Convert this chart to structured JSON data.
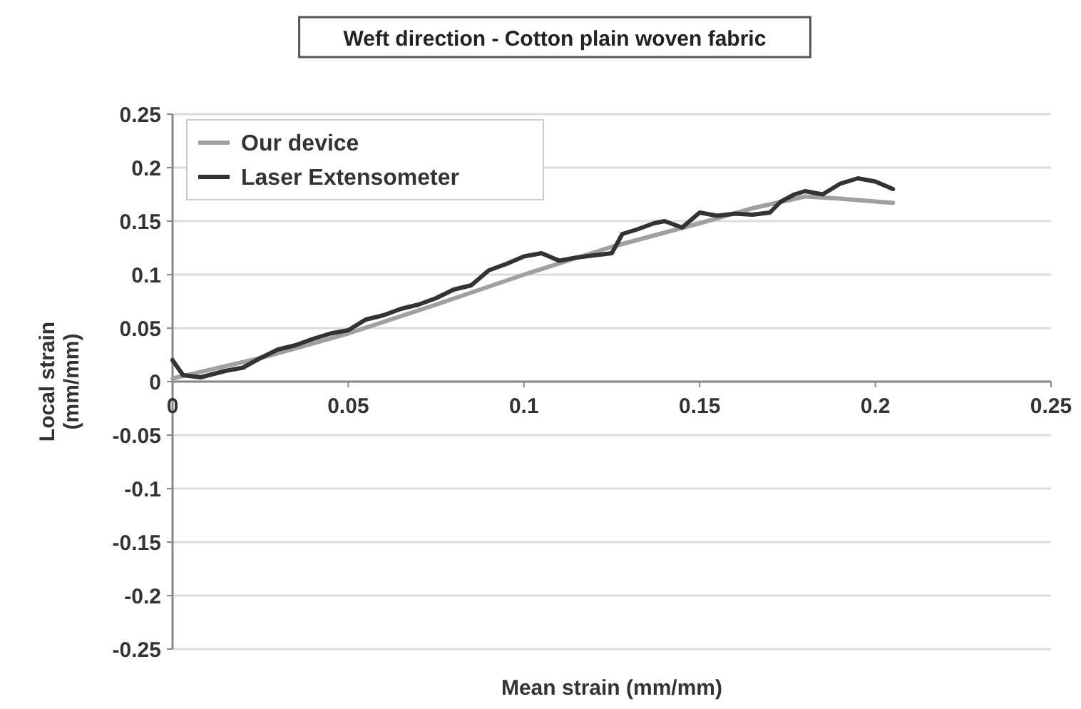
{
  "chart_data": {
    "type": "line",
    "title": "Weft direction - Cotton plain woven fabric",
    "xlabel": "Mean strain (mm/mm)",
    "ylabel": "Local strain (mm/mm)",
    "xlim": [
      0,
      0.25
    ],
    "xticks": [
      0,
      0.05,
      0.1,
      0.15,
      0.2,
      0.25
    ],
    "ylim": [
      -0.25,
      0.25
    ],
    "yticks": [
      -0.25,
      -0.2,
      -0.15,
      -0.1,
      -0.05,
      0,
      0.05,
      0.1,
      0.15,
      0.2,
      0.25
    ],
    "grid": "y",
    "legend": "top left",
    "marker": "none",
    "series": [
      {
        "name": "Our device",
        "color": "#a0a0a0",
        "x": [
          0,
          0.025,
          0.05,
          0.075,
          0.1,
          0.125,
          0.15,
          0.165,
          0.18,
          0.19,
          0.205
        ],
        "values": [
          0.003,
          0.022,
          0.045,
          0.072,
          0.1,
          0.126,
          0.148,
          0.162,
          0.173,
          0.171,
          0.167
        ]
      },
      {
        "name": "Laser Extensometer",
        "color": "#333333",
        "x": [
          0,
          0.003,
          0.008,
          0.015,
          0.02,
          0.025,
          0.03,
          0.035,
          0.04,
          0.045,
          0.05,
          0.055,
          0.06,
          0.065,
          0.07,
          0.075,
          0.08,
          0.085,
          0.09,
          0.095,
          0.1,
          0.105,
          0.11,
          0.115,
          0.12,
          0.125,
          0.128,
          0.132,
          0.137,
          0.14,
          0.145,
          0.15,
          0.155,
          0.16,
          0.165,
          0.17,
          0.173,
          0.177,
          0.18,
          0.185,
          0.19,
          0.195,
          0.2,
          0.205
        ],
        "values": [
          0.02,
          0.006,
          0.004,
          0.01,
          0.013,
          0.022,
          0.03,
          0.034,
          0.04,
          0.045,
          0.048,
          0.058,
          0.062,
          0.068,
          0.072,
          0.078,
          0.086,
          0.09,
          0.104,
          0.11,
          0.117,
          0.12,
          0.113,
          0.116,
          0.118,
          0.12,
          0.138,
          0.142,
          0.148,
          0.15,
          0.144,
          0.158,
          0.155,
          0.157,
          0.156,
          0.158,
          0.168,
          0.175,
          0.178,
          0.175,
          0.185,
          0.19,
          0.187,
          0.18
        ]
      }
    ]
  }
}
